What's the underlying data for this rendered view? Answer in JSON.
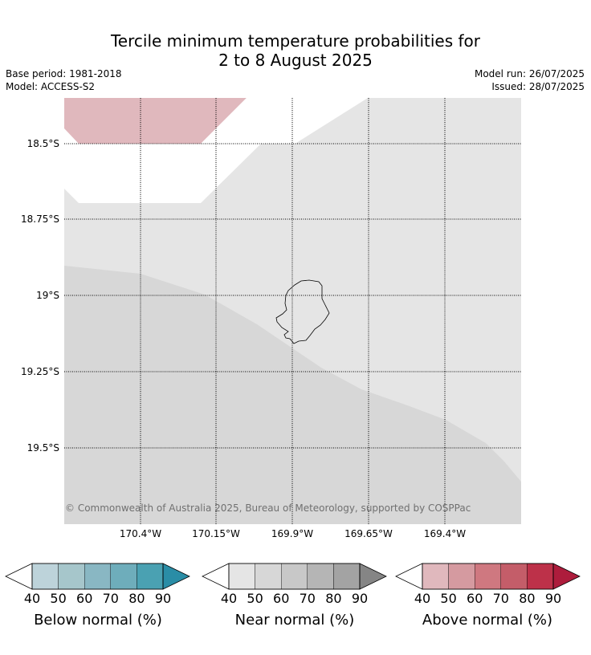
{
  "title": {
    "line1": "Tercile minimum temperature probabilities for",
    "line2": "2 to 8 August 2025"
  },
  "meta": {
    "base_period": "Base period: 1981-2018",
    "model": "Model: ACCESS-S2",
    "model_run": "Model run: 26/07/2025",
    "issued": "Issued: 28/07/2025"
  },
  "map": {
    "copyright": "© Commonwealth of Australia 2025, Bureau of Meteorology, supported by COSPPac",
    "lat_labels": [
      "18.5°S",
      "18.75°S",
      "19°S",
      "19.25°S",
      "19.5°S"
    ],
    "lon_labels": [
      "170.4°W",
      "170.15°W",
      "169.9°W",
      "169.65°W",
      "169.4°W"
    ],
    "colors": {
      "above_50": "#e0b8bd",
      "near_50": "#e5e5e5",
      "near_40": "#d7d7d7",
      "no_dominant": "#ffffff",
      "grid": "#000000"
    }
  },
  "colorbars": [
    {
      "label": "Below normal (%)",
      "ticks": [
        "40",
        "50",
        "60",
        "70",
        "80",
        "90"
      ],
      "colors": [
        "#ffffff",
        "#bdd3da",
        "#a6c6cb",
        "#89b7c3",
        "#6eadbb",
        "#4aa1b2",
        "#2a8da6"
      ]
    },
    {
      "label": "Near normal (%)",
      "ticks": [
        "40",
        "50",
        "60",
        "70",
        "80",
        "90"
      ],
      "colors": [
        "#ffffff",
        "#e5e5e5",
        "#d7d7d7",
        "#c8c8c8",
        "#b5b5b5",
        "#a3a3a3",
        "#858585"
      ]
    },
    {
      "label": "Above normal (%)",
      "ticks": [
        "40",
        "50",
        "60",
        "70",
        "80",
        "90"
      ],
      "colors": [
        "#ffffff",
        "#e0b8bd",
        "#d59aa0",
        "#cf7880",
        "#c45d69",
        "#bd3149",
        "#ad1c3c"
      ]
    }
  ]
}
